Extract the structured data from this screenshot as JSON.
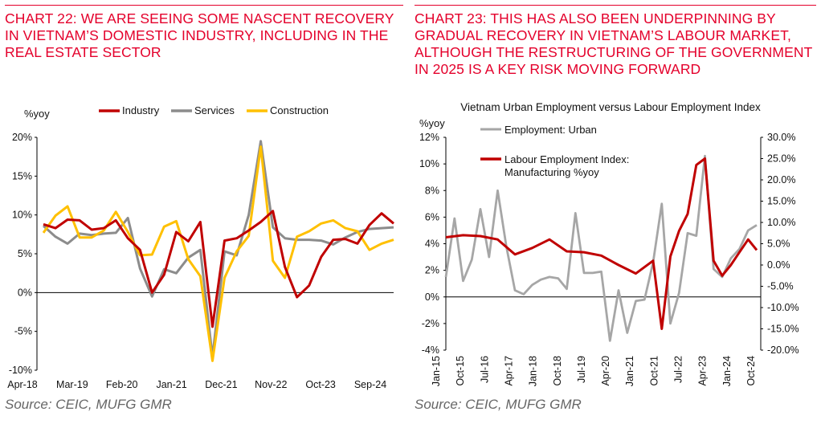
{
  "chart_left": {
    "title": "CHART 22: WE ARE SEEING SOME NASCENT RECOVERY IN VIETNAM’S DOMESTIC INDUSTRY, INCLUDING IN THE REAL ESTATE SECTOR",
    "source": "Source: CEIC, MUFG GMR"
  },
  "chart_right": {
    "title": "CHART 23: THIS HAS ALSO BEEN UNDERPINNING BY GRADUAL RECOVERY IN VIETNAM’S LABOUR MARKET, ALTHOUGH THE RESTRUCTURING OF THE GOVERNMENT IN 2025 IS A KEY RISK MOVING FORWARD",
    "source": "Source: CEIC, MUFG GMR"
  },
  "chart_data": [
    {
      "type": "line",
      "ylabel": "%yoy",
      "ylim": [
        -10,
        20
      ],
      "yticks": [
        "20%",
        "15%",
        "10%",
        "5%",
        "0%",
        "-5%",
        "-10%"
      ],
      "xtick_labels": [
        "Apr-18",
        "Mar-19",
        "Feb-20",
        "Jan-21",
        "Dec-21",
        "Nov-22",
        "Oct-23",
        "Sep-24"
      ],
      "legend_position": "top",
      "series": [
        {
          "name": "Industry",
          "color": "#c00000",
          "values": [
            8.8,
            8.3,
            9.4,
            9.3,
            8.1,
            8.3,
            9.3,
            7.0,
            5.5,
            0.0,
            2.3,
            7.8,
            6.6,
            9.1,
            -4.4,
            6.7,
            7.0,
            8.0,
            9.1,
            10.5,
            3.3,
            -0.6,
            0.9,
            4.6,
            6.8,
            6.9,
            6.3,
            8.7,
            10.2,
            8.9
          ]
        },
        {
          "name": "Services",
          "color": "#8c8c8c",
          "values": [
            8.6,
            7.2,
            6.3,
            7.6,
            7.4,
            7.6,
            7.7,
            9.6,
            3.1,
            -0.5,
            3.0,
            2.5,
            4.5,
            5.5,
            -8.3,
            5.3,
            4.8,
            10.0,
            19.5,
            8.4,
            7.0,
            6.8,
            6.8,
            6.7,
            6.2,
            7.1,
            7.8,
            8.2,
            8.3,
            8.4
          ]
        },
        {
          "name": "Construction",
          "color": "#ffc000",
          "values": [
            7.7,
            9.9,
            11.1,
            7.1,
            7.1,
            8.0,
            10.4,
            7.8,
            4.8,
            4.9,
            8.5,
            9.2,
            4.3,
            2.1,
            -8.8,
            1.9,
            5.3,
            7.3,
            18.8,
            4.1,
            1.9,
            7.2,
            7.9,
            8.9,
            9.3,
            8.3,
            7.9,
            5.5,
            6.3,
            6.8
          ]
        }
      ]
    },
    {
      "type": "line",
      "title": "Vietnam Urban Employment versus Labour Employment Index",
      "ylabel": "%yoy",
      "ylim": [
        -4,
        12
      ],
      "ylim_right": [
        -20,
        30
      ],
      "yticks": [
        "12%",
        "10%",
        "8%",
        "6%",
        "4%",
        "2%",
        "0%",
        "-2%",
        "-4%"
      ],
      "yticks_right": [
        "30.0%",
        "25.0%",
        "20.0%",
        "15.0%",
        "10.0%",
        "5.0%",
        "0.0%",
        "-5.0%",
        "-10.0%",
        "-15.0%",
        "-20.0%"
      ],
      "xtick_labels": [
        "Jan-15",
        "Oct-15",
        "Jul-16",
        "Apr-17",
        "Jan-18",
        "Oct-18",
        "Jul-19",
        "Apr-20",
        "Jan-21",
        "Oct-21",
        "Jul-22",
        "Apr-23",
        "Jan-24",
        "Oct-24"
      ],
      "legend_position": "top-left",
      "series": [
        {
          "name": "Employment: Urban",
          "color": "#a6a6a6",
          "axis": "left",
          "x": [
            0,
            1,
            2,
            3,
            4,
            5,
            6,
            7,
            8,
            9,
            10,
            11,
            12,
            13,
            14,
            15,
            16,
            17,
            18,
            19,
            20,
            21,
            22,
            23,
            24,
            25,
            26,
            27,
            28,
            29,
            30,
            31,
            32,
            33,
            34,
            35,
            36
          ],
          "values": [
            1.5,
            5.9,
            1.2,
            2.8,
            6.6,
            3.0,
            8.0,
            3.8,
            0.5,
            0.2,
            0.9,
            1.3,
            1.5,
            1.4,
            0.6,
            6.3,
            1.8,
            1.8,
            1.9,
            -3.3,
            0.5,
            -2.7,
            -0.3,
            -0.2,
            2.6,
            7.0,
            -2.0,
            0.3,
            4.8,
            4.6,
            10.6,
            2.1,
            1.5,
            2.9,
            3.6,
            5.0,
            5.4
          ]
        },
        {
          "name": "Labour Employment Index: Manufacturing %yoy",
          "color": "#c00000",
          "axis": "right",
          "x": [
            0,
            2,
            4,
            6,
            8,
            10,
            12,
            14,
            16,
            18,
            20,
            22,
            24,
            25,
            26,
            27,
            28,
            29,
            30,
            31,
            32,
            33,
            34,
            35,
            36
          ],
          "values": [
            6.5,
            7.0,
            6.8,
            6.0,
            2.5,
            4.0,
            6.0,
            3.2,
            3.0,
            2.2,
            0.0,
            -2.0,
            1.0,
            -15.0,
            2.0,
            8.0,
            12.0,
            23.5,
            25.0,
            1.0,
            -2.5,
            0.0,
            3.0,
            6.0,
            3.5
          ]
        }
      ]
    }
  ]
}
